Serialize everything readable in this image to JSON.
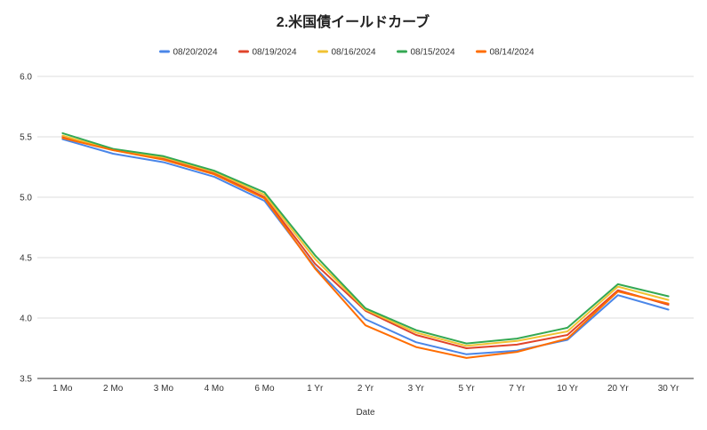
{
  "chart_data": {
    "type": "line",
    "title": "2.米国債イールドカーブ",
    "xlabel": "Date",
    "ylabel": "",
    "categories": [
      "1 Mo",
      "2 Mo",
      "3 Mo",
      "4 Mo",
      "6 Mo",
      "1 Yr",
      "2 Yr",
      "3 Yr",
      "5 Yr",
      "7 Yr",
      "10 Yr",
      "20 Yr",
      "30 Yr"
    ],
    "ylim": [
      3.5,
      6.0
    ],
    "yticks": [
      "3.5",
      "4.0",
      "4.5",
      "5.0",
      "5.5",
      "6.0"
    ],
    "grid": true,
    "legend_position": "top",
    "series": [
      {
        "name": "08/20/2024",
        "color": "#4a86e8",
        "values": [
          5.48,
          5.36,
          5.29,
          5.17,
          4.97,
          4.42,
          3.99,
          3.8,
          3.7,
          3.73,
          3.82,
          4.19,
          4.07
        ]
      },
      {
        "name": "08/19/2024",
        "color": "#e0442b",
        "values": [
          5.5,
          5.39,
          5.32,
          5.2,
          5.0,
          4.45,
          4.06,
          3.86,
          3.75,
          3.78,
          3.86,
          4.23,
          4.11
        ]
      },
      {
        "name": "08/16/2024",
        "color": "#f1c232",
        "values": [
          5.51,
          5.39,
          5.33,
          5.21,
          5.02,
          4.49,
          4.07,
          3.88,
          3.77,
          3.81,
          3.89,
          4.26,
          4.15
        ]
      },
      {
        "name": "08/15/2024",
        "color": "#34a853",
        "values": [
          5.53,
          5.4,
          5.34,
          5.22,
          5.04,
          4.52,
          4.08,
          3.9,
          3.79,
          3.83,
          3.92,
          4.28,
          4.18
        ]
      },
      {
        "name": "08/14/2024",
        "color": "#ff6d01",
        "values": [
          5.49,
          5.39,
          5.31,
          5.19,
          4.99,
          4.41,
          3.94,
          3.76,
          3.67,
          3.72,
          3.83,
          4.22,
          4.12
        ]
      }
    ]
  }
}
